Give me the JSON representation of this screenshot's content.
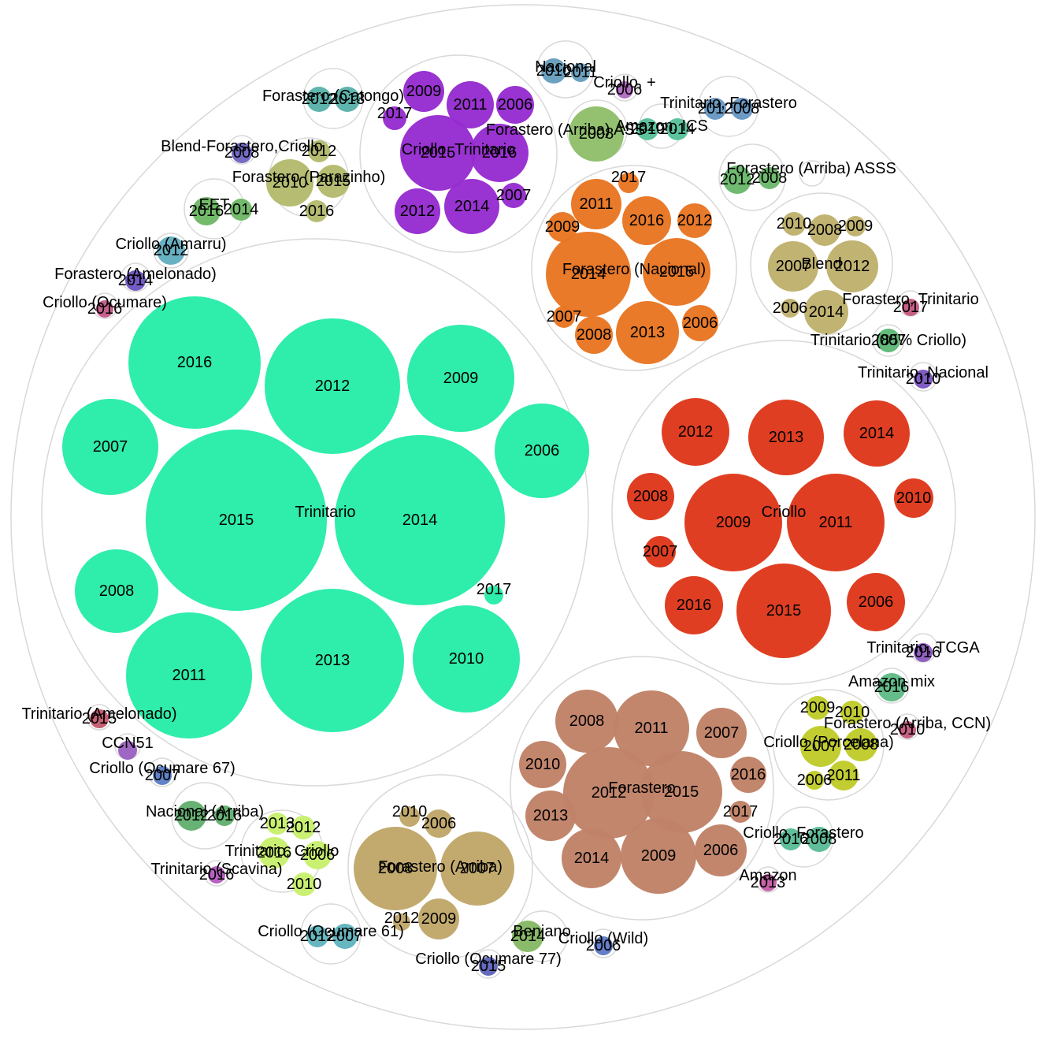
{
  "chart_data": {
    "type": "packed-bubble",
    "title": "",
    "value_note": "circle area represents each bubble's relative value (unitless, estimated from image)",
    "groups": [
      {
        "name": "Trinitario",
        "color": "#28eca8",
        "children": [
          {
            "label": "2015",
            "value": 13.1
          },
          {
            "label": "2014",
            "value": 13.1
          },
          {
            "label": "2013",
            "value": 8.3
          },
          {
            "label": "2011",
            "value": 8.1
          },
          {
            "label": "2012",
            "value": 6.1
          },
          {
            "label": "2016",
            "value": 6.7
          },
          {
            "label": "2009",
            "value": 3.8
          },
          {
            "label": "2010",
            "value": 4.6
          },
          {
            "label": "2007",
            "value": 3.0
          },
          {
            "label": "2008",
            "value": 2.6
          },
          {
            "label": "2006",
            "value": 3.4
          },
          {
            "label": "2017",
            "value": 0.14
          }
        ]
      },
      {
        "name": "Criollo",
        "color": "#df381b",
        "children": [
          {
            "label": "2009",
            "value": 5.9
          },
          {
            "label": "2011",
            "value": 5.9
          },
          {
            "label": "2015",
            "value": 5.8
          },
          {
            "label": "2013",
            "value": 3.6
          },
          {
            "label": "2012",
            "value": 2.9
          },
          {
            "label": "2014",
            "value": 2.7
          },
          {
            "label": "2016",
            "value": 2.1
          },
          {
            "label": "2006",
            "value": 2.0
          },
          {
            "label": "2008",
            "value": 1.4
          },
          {
            "label": "2010",
            "value": 1.0
          },
          {
            "label": "2007",
            "value": 0.58
          }
        ]
      },
      {
        "name": "Forastero",
        "color": "#c08268",
        "children": [
          {
            "label": "2012",
            "value": 2.75
          },
          {
            "label": "2015",
            "value": 2.3
          },
          {
            "label": "2009",
            "value": 2.0
          },
          {
            "label": "2011",
            "value": 1.9
          },
          {
            "label": "2008",
            "value": 1.3
          },
          {
            "label": "2014",
            "value": 1.1
          },
          {
            "label": "2006",
            "value": 0.93
          },
          {
            "label": "2007",
            "value": 0.88
          },
          {
            "label": "2013",
            "value": 0.87
          },
          {
            "label": "2010",
            "value": 0.81
          },
          {
            "label": "2016",
            "value": 0.42
          },
          {
            "label": "2017",
            "value": 0.17
          }
        ]
      },
      {
        "name": "Forastero (Nacional)",
        "color": "#e87623",
        "children": [
          {
            "label": "2014",
            "value": 2.4
          },
          {
            "label": "2015",
            "value": 1.55
          },
          {
            "label": "2013",
            "value": 1.3
          },
          {
            "label": "2011",
            "value": 0.87
          },
          {
            "label": "2016",
            "value": 0.83
          },
          {
            "label": "2008",
            "value": 0.5
          },
          {
            "label": "2012",
            "value": 0.44
          },
          {
            "label": "2006",
            "value": 0.46
          },
          {
            "label": "2009",
            "value": 0.36
          },
          {
            "label": "2007",
            "value": 0.2
          },
          {
            "label": "2017",
            "value": 0.17
          }
        ]
      },
      {
        "name": "Criollo, Trinitario",
        "color": "#962cd0",
        "children": [
          {
            "label": "2015",
            "value": 1.83
          },
          {
            "label": "2016",
            "value": 1.11
          },
          {
            "label": "2014",
            "value": 1.0
          },
          {
            "label": "2011",
            "value": 0.74
          },
          {
            "label": "2012",
            "value": 0.69
          },
          {
            "label": "2009",
            "value": 0.56
          },
          {
            "label": "2006",
            "value": 0.47
          },
          {
            "label": "2007",
            "value": 0.2
          },
          {
            "label": "2017",
            "value": 0.18
          }
        ]
      },
      {
        "name": "Blend",
        "color": "#bfb16c",
        "children": [
          {
            "label": "2012",
            "value": 0.9
          },
          {
            "label": "2007",
            "value": 0.85
          },
          {
            "label": "2014",
            "value": 0.67
          },
          {
            "label": "2008",
            "value": 0.33
          },
          {
            "label": "2010",
            "value": 0.2
          },
          {
            "label": "2009",
            "value": 0.14
          },
          {
            "label": "2006",
            "value": 0.11
          }
        ]
      },
      {
        "name": "Forastero (Arriba)",
        "color": "#c0a76a",
        "children": [
          {
            "label": "2008",
            "value": 2.3
          },
          {
            "label": "2007",
            "value": 1.9
          },
          {
            "label": "2009",
            "value": 0.66
          },
          {
            "label": "2006",
            "value": 0.33
          },
          {
            "label": "2010",
            "value": 0.15
          },
          {
            "label": "2012",
            "value": 0.11
          }
        ]
      },
      {
        "name": "Criollo (Porcelana)",
        "color": "#c0cb2b",
        "children": [
          {
            "label": "2007",
            "value": 0.6
          },
          {
            "label": "2008",
            "value": 0.38
          },
          {
            "label": "2011",
            "value": 0.33
          },
          {
            "label": "2009",
            "value": 0.2
          },
          {
            "label": "2010",
            "value": 0.2
          },
          {
            "label": "2006",
            "value": 0.15
          }
        ]
      },
      {
        "name": "Trinitario, Criollo",
        "color": "#c8f06e",
        "children": [
          {
            "label": "2016",
            "value": 0.35
          },
          {
            "label": "2006",
            "value": 0.3
          },
          {
            "label": "2010",
            "value": 0.2
          },
          {
            "label": "2012",
            "value": 0.2
          },
          {
            "label": "2013",
            "value": 0.18
          }
        ]
      },
      {
        "name": "Forastero (Parazinho)",
        "color": "#b4bb6d",
        "children": [
          {
            "label": "2010",
            "value": 0.85
          },
          {
            "label": "2015",
            "value": 0.42
          },
          {
            "label": "2012",
            "value": 0.17
          },
          {
            "label": "2016",
            "value": 0.17
          }
        ]
      },
      {
        "name": "Forastero (Arriba) ASS",
        "color": "#90bf6a",
        "children": [
          {
            "label": "2008",
            "value": 1.1
          }
        ]
      },
      {
        "name": "Amazon, ICS",
        "color": "#58c19a",
        "children": [
          {
            "label": "2010",
            "value": 0.16
          },
          {
            "label": "2014",
            "value": 0.16
          }
        ]
      },
      {
        "name": "Forastero (Arriba) ASSS",
        "color": "#6ab86b",
        "children": [
          {
            "label": "2012",
            "value": 0.3
          },
          {
            "label": "2008",
            "value": 0.2
          }
        ]
      },
      {
        "name": "EET",
        "color": "#6eb865",
        "children": [
          {
            "label": "2016",
            "value": 0.3
          },
          {
            "label": "2014",
            "value": 0.2
          }
        ]
      },
      {
        "name": "Nacional (Arriba)",
        "color": "#62b070",
        "children": [
          {
            "label": "2012",
            "value": 0.34
          },
          {
            "label": "2016",
            "value": 0.16
          }
        ]
      },
      {
        "name": "Nacional",
        "color": "#679ebd",
        "children": [
          {
            "label": "2010",
            "value": 0.24
          },
          {
            "label": "2011",
            "value": 0.17
          }
        ]
      },
      {
        "name": "Forastero (Catongo)",
        "color": "#5ab3aa",
        "children": [
          {
            "label": "2012",
            "value": 0.24
          },
          {
            "label": "2013",
            "value": 0.24
          }
        ]
      },
      {
        "name": "Trinitario, Forastero",
        "color": "#6798c3",
        "children": [
          {
            "label": "2012",
            "value": 0.2
          },
          {
            "label": "2008",
            "value": 0.2
          }
        ]
      },
      {
        "name": "Criollo (Ocumare 61)",
        "color": "#62b5be",
        "children": [
          {
            "label": "2012",
            "value": 0.2
          },
          {
            "label": "2007",
            "value": 0.24
          }
        ]
      },
      {
        "name": "Criollo, Forastero",
        "color": "#5bbc98",
        "children": [
          {
            "label": "2016",
            "value": 0.2
          },
          {
            "label": "2008",
            "value": 0.24
          }
        ]
      },
      {
        "name": "Beniano",
        "color": "#86b966",
        "children": [
          {
            "label": "2014",
            "value": 0.5
          }
        ]
      },
      {
        "name": "Criollo (Amarru)",
        "color": "#62aec1",
        "children": [
          {
            "label": "2012",
            "value": 0.45
          }
        ]
      },
      {
        "name": "Amazon mix",
        "color": "#5fbb86",
        "children": [
          {
            "label": "2016",
            "value": 0.45
          }
        ]
      },
      {
        "name": "Trinitario (85% Criollo)",
        "color": "#5eb877",
        "children": [
          {
            "label": "2007",
            "value": 0.3
          }
        ]
      },
      {
        "name": "Blend-Forastero,Criollo",
        "color": "#6f66c2",
        "children": [
          {
            "label": "2008",
            "value": 0.24
          }
        ]
      },
      {
        "name": "Forastero (Amelonado)",
        "color": "#6f56c2",
        "children": [
          {
            "label": "2014",
            "value": 0.24
          }
        ]
      },
      {
        "name": "Trinitario, Nacional",
        "color": "#7c58c1",
        "children": [
          {
            "label": "2010",
            "value": 0.2
          }
        ]
      },
      {
        "name": "Trinitario, TCGA",
        "color": "#8c5cc1",
        "children": [
          {
            "label": "2016",
            "value": 0.2
          }
        ]
      },
      {
        "name": "Criollo (Ocumare 67)",
        "color": "#5b7fc6",
        "children": [
          {
            "label": "2007",
            "value": 0.2
          }
        ]
      },
      {
        "name": "Criollo (Ocumare 77)",
        "color": "#5f66bb",
        "children": [
          {
            "label": "2015",
            "value": 0.2
          }
        ]
      },
      {
        "name": "Criollo (Wild)",
        "color": "#607bc6",
        "children": [
          {
            "label": "2006",
            "value": 0.2
          }
        ]
      },
      {
        "name": "Criollo, +",
        "color": "#b06cc1",
        "children": [
          {
            "label": "2006",
            "value": 0.15
          }
        ]
      },
      {
        "name": "Forastero (Arriba) ASSS (2)",
        "display_name": "",
        "color": "#c26cbb",
        "children": []
      },
      {
        "name": "CCN51",
        "color": "#9a62c1",
        "children": [
          {
            "label": "",
            "value": 0.2
          }
        ]
      },
      {
        "name": "Trinitario (Scavina)",
        "color": "#b55cc0",
        "children": [
          {
            "label": "2016",
            "value": 0.2
          }
        ]
      },
      {
        "name": "Amazon",
        "color": "#c55ea6",
        "children": [
          {
            "label": "2013",
            "value": 0.2
          }
        ]
      },
      {
        "name": "Forastero, Trinitario",
        "color": "#c45b82",
        "children": [
          {
            "label": "2017",
            "value": 0.17
          }
        ]
      },
      {
        "name": "Criollo (Ocumare)",
        "color": "#c45b89",
        "children": [
          {
            "label": "2016",
            "value": 0.17
          }
        ]
      },
      {
        "name": "Forastero (Arriba, CCN)",
        "color": "#c55b80",
        "children": [
          {
            "label": "2010",
            "value": 0.17
          }
        ]
      },
      {
        "name": "Trinitario (Amelonado)",
        "color": "#c45b6e",
        "children": [
          {
            "label": "2015",
            "value": 0.2
          }
        ]
      }
    ]
  },
  "labels": {
    "blend_forastero_criollo": "Blend-Forastero,Criollo",
    "eet": "EET",
    "criollo_amarru": "Criollo (Amarru)",
    "forastero_amelonado": "Forastero (Amelonado)",
    "criollo_ocumare": "Criollo (Ocumare)",
    "forastero_catongo": "Forastero (Catongo)",
    "forastero_parazinho": "Forastero (Parazinho)",
    "criollo_trinitario": "Criollo, Trinitario",
    "nacional": "Nacional",
    "criollo_plus": "Criollo, +",
    "trinitario_forastero": "Trinitario, Forastero",
    "forastero_arriba_ass": "Forastero (Arriba) ASS",
    "amazon_ics": "Amazon, ICS",
    "forastero_arriba_asss": "Forastero (Arriba) ASSS",
    "forastero_nacional": "Forastero (Nacional)",
    "blend": "Blend",
    "forastero_trinitario": "Forastero, Trinitario",
    "trinitario_85": "Trinitario (85% Criollo)",
    "trinitario_nacional": "Trinitario, Nacional",
    "trinitario": "Trinitario",
    "criollo": "Criollo",
    "trinitario_tcga": "Trinitario, TCGA",
    "amazon_mix": "Amazon mix",
    "forastero_arriba_ccn": "Forastero (Arriba, CCN)",
    "criollo_porcelana": "Criollo (Porcelana)",
    "forastero": "Forastero",
    "criollo_forastero": "Criollo, Forastero",
    "amazon": "Amazon",
    "trinitario_amelonado": "Trinitario (Amelonado)",
    "ccn51": "CCN51",
    "criollo_ocumare67": "Criollo (Ocumare 67)",
    "nacional_arriba": "Nacional (Arriba)",
    "trinitario_criollo": "Trinitario, Criollo",
    "trinitario_scavina": "Trinitario (Scavina)",
    "forastero_arriba": "Forastero (Arriba)",
    "criollo_ocumare61": "Criollo (Ocumare 61)",
    "criollo_ocumare77": "Criollo (Ocumare 77)",
    "beniano": "Beniano",
    "criollo_wild": "Criollo (Wild)"
  }
}
